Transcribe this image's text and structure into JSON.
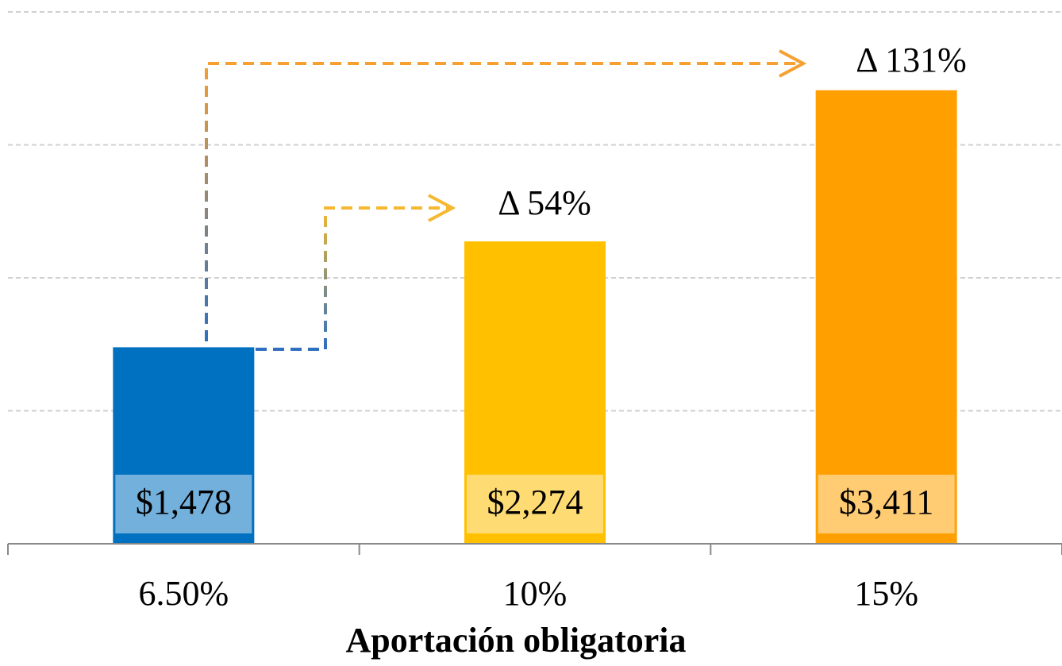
{
  "chart_data": {
    "type": "bar",
    "categories": [
      "6.50%",
      "10%",
      "15%"
    ],
    "values": [
      1478,
      2274,
      3411
    ],
    "value_labels": [
      "$1,478",
      "$2,274",
      "$3,411"
    ],
    "colors": [
      "#0070c0",
      "#ffc000",
      "#ffa000"
    ],
    "ylim": [
      0,
      4000
    ],
    "yticks": [
      0,
      1000,
      2000,
      3000,
      4000
    ],
    "grid": true,
    "xlabel": "Aportación obligatoria",
    "annotations": [
      "Δ 54%",
      "Δ 131%"
    ]
  }
}
